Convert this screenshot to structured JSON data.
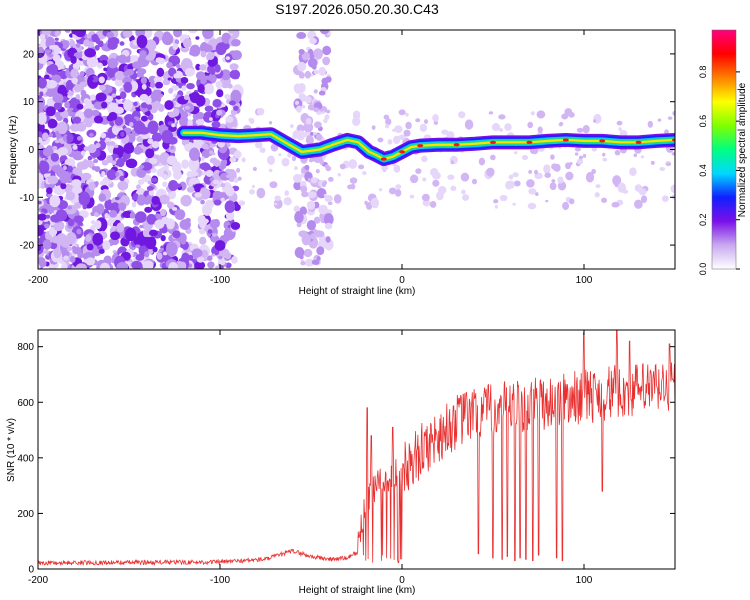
{
  "page_title": "S197.2026.050.20.30.C43",
  "chart_data": [
    {
      "type": "heatmap",
      "title": "S197.2026.050.20.30.C43",
      "xlabel": "Height of straight line (km)",
      "ylabel": "Frequency (Hz)",
      "xlim": [
        -200,
        150
      ],
      "ylim": [
        -25,
        25
      ],
      "xticks": [
        -200,
        -100,
        0,
        100
      ],
      "xtick_labels": [
        "-200",
        "-100",
        "0",
        "100"
      ],
      "yticks": [
        -20,
        -10,
        0,
        10,
        20
      ],
      "ytick_labels": [
        "-20",
        "-10",
        "0",
        "10",
        "20"
      ],
      "colorbar": {
        "label": "Normalized spectral amplitude",
        "range": [
          0,
          0.97
        ],
        "ticks": [
          0.0,
          0.2,
          0.4,
          0.6,
          0.8
        ],
        "tick_labels": [
          "0.0",
          "0.2",
          "0.4",
          "0.6",
          "0.8"
        ],
        "stops": [
          "#ffffff",
          "#c9a8f0",
          "#7a10e8",
          "#1020ff",
          "#00d8ff",
          "#00ff80",
          "#80ff00",
          "#ffff00",
          "#ff8000",
          "#ff0000",
          "#ff0080"
        ]
      },
      "ridge": [
        [
          -120,
          3.5
        ],
        [
          -110,
          3.5
        ],
        [
          -100,
          3.0
        ],
        [
          -90,
          2.8
        ],
        [
          -80,
          3.0
        ],
        [
          -72,
          3.2
        ],
        [
          -62,
          1.0
        ],
        [
          -55,
          -0.5
        ],
        [
          -45,
          0.0
        ],
        [
          -38,
          1.0
        ],
        [
          -30,
          2.0
        ],
        [
          -24,
          1.5
        ],
        [
          -18,
          -0.5
        ],
        [
          -15,
          -1.0
        ],
        [
          -10,
          -2.0
        ],
        [
          -5,
          -1.5
        ],
        [
          0,
          -0.5
        ],
        [
          5,
          0.5
        ],
        [
          10,
          0.8
        ],
        [
          20,
          1.0
        ],
        [
          30,
          1.0
        ],
        [
          40,
          1.2
        ],
        [
          50,
          1.5
        ],
        [
          60,
          1.5
        ],
        [
          70,
          1.5
        ],
        [
          80,
          1.8
        ],
        [
          90,
          2.0
        ],
        [
          100,
          1.8
        ],
        [
          110,
          1.8
        ],
        [
          120,
          1.5
        ],
        [
          130,
          1.5
        ],
        [
          140,
          1.8
        ],
        [
          150,
          2.0
        ]
      ]
    },
    {
      "type": "line",
      "xlabel": "Height of straight line (km)",
      "ylabel": "SNR (10 * v/v)",
      "xlim": [
        -200,
        150
      ],
      "ylim": [
        0,
        860
      ],
      "xticks": [
        -200,
        -100,
        0,
        100
      ],
      "xtick_labels": [
        "-200",
        "-100",
        "0",
        "100"
      ],
      "yticks": [
        0,
        200,
        400,
        600,
        800
      ],
      "ytick_labels": [
        "0",
        "200",
        "400",
        "600",
        "800"
      ],
      "series": [
        {
          "name": "SNR",
          "color": "#e83030",
          "trend": [
            [
              -200,
              22
            ],
            [
              -100,
              25
            ],
            [
              -75,
              35
            ],
            [
              -60,
              65
            ],
            [
              -50,
              45
            ],
            [
              -40,
              35
            ],
            [
              -30,
              40
            ],
            [
              -25,
              60
            ],
            [
              -20,
              250
            ],
            [
              -10,
              320
            ],
            [
              0,
              350
            ],
            [
              10,
              420
            ],
            [
              20,
              480
            ],
            [
              30,
              530
            ],
            [
              40,
              560
            ],
            [
              60,
              580
            ],
            [
              80,
              600
            ],
            [
              100,
              620
            ],
            [
              120,
              640
            ],
            [
              140,
              650
            ],
            [
              150,
              660
            ]
          ],
          "dropouts": [
            [
              42,
              55
            ],
            [
              50,
              40
            ],
            [
              55,
              35
            ],
            [
              58,
              45
            ],
            [
              62,
              30
            ],
            [
              65,
              40
            ],
            [
              68,
              35
            ],
            [
              72,
              30
            ],
            [
              75,
              50
            ],
            [
              85,
              40
            ],
            [
              88,
              30
            ],
            [
              110,
              280
            ]
          ],
          "peaks": [
            [
              -19,
              580
            ],
            [
              -17,
              480
            ],
            [
              -5,
              510
            ],
            [
              100,
              850
            ],
            [
              118,
              860
            ],
            [
              125,
              820
            ],
            [
              147,
              810
            ]
          ]
        }
      ]
    }
  ]
}
